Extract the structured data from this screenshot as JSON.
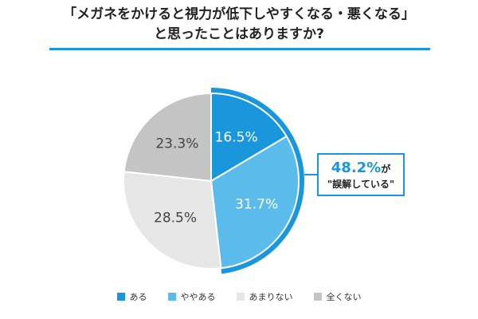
{
  "chart_data": {
    "type": "pie",
    "title": "「メガネをかけると視力が低下しやすくなる・悪くなる」と思ったことはありますか?",
    "title_lines": [
      "「メガネをかけると視力が低下しやすくなる・悪くなる」",
      "と思ったことはありますか?"
    ],
    "slices": [
      {
        "name": "ある",
        "value": 16.5,
        "label": "16.5%",
        "color": "#1a96dc"
      },
      {
        "name": "ややある",
        "value": 31.7,
        "label": "31.7%",
        "color": "#5bbbea"
      },
      {
        "name": "あまりない",
        "value": 28.5,
        "label": "28.5%",
        "color": "#e6e6e6"
      },
      {
        "name": "全くない",
        "value": 23.3,
        "label": "23.3%",
        "color": "#c4c4c4"
      }
    ],
    "start": "12 o'clock",
    "direction": "clockwise",
    "legend_position": "bottom",
    "highlight_color": "#1a96dc",
    "callout": {
      "value": "48.2%",
      "suffix": "が",
      "text": "\"誤解している\""
    }
  }
}
